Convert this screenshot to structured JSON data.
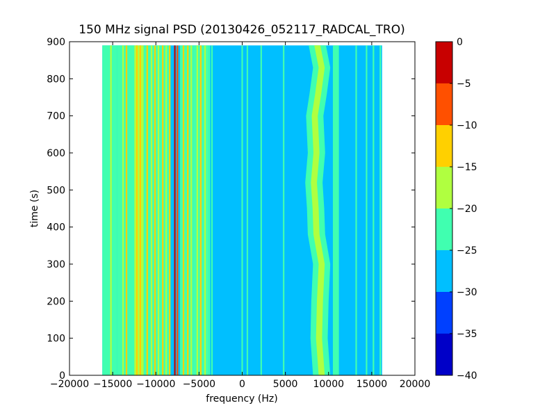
{
  "chart_data": {
    "type": "heatmap",
    "title": "150 MHz signal PSD (20130426_052117_RADCAL_TRO)",
    "xlabel": "frequency (Hz)",
    "ylabel": "time (s)",
    "xlim": [
      -20000,
      20000
    ],
    "ylim": [
      0,
      900
    ],
    "x_ticks": [
      -20000,
      -15000,
      -10000,
      -5000,
      0,
      5000,
      10000,
      15000,
      20000
    ],
    "x_tick_labels": [
      "−20000",
      "−15000",
      "−10000",
      "−5000",
      "0",
      "5000",
      "10000",
      "15000",
      "20000"
    ],
    "y_ticks": [
      0,
      100,
      200,
      300,
      400,
      500,
      600,
      700,
      800,
      900
    ],
    "y_tick_labels": [
      "0",
      "100",
      "200",
      "300",
      "400",
      "500",
      "600",
      "700",
      "800",
      "900"
    ],
    "data_extent": {
      "freq_min": -16200,
      "freq_max": 16200,
      "time_min": 0,
      "time_max": 890
    },
    "background_level": -27.5,
    "grid": false,
    "colorbar": {
      "levels": [
        -40,
        -35,
        -30,
        -25,
        -20,
        -15,
        -10,
        -5,
        0
      ],
      "tick_labels": [
        "−40",
        "−35",
        "−30",
        "−25",
        "−20",
        "−15",
        "−10",
        "−5",
        "0"
      ],
      "colors": [
        "#0000c8",
        "#0040ff",
        "#00bfff",
        "#40ffb0",
        "#b0ff40",
        "#ffd000",
        "#ff5000",
        "#c80000"
      ]
    },
    "features": [
      {
        "kind": "band",
        "x_from": -16200,
        "x_to": -14500,
        "level": -22.5
      },
      {
        "kind": "band",
        "x_from": -14500,
        "x_to": -12500,
        "level": -22.5
      },
      {
        "kind": "line",
        "x": -15200,
        "level": -17.5
      },
      {
        "kind": "line",
        "x": -13800,
        "level": -17.5
      },
      {
        "kind": "line",
        "x": -13400,
        "level": -12.5
      },
      {
        "kind": "band",
        "x_from": -12500,
        "x_to": -11400,
        "level": -17.5
      },
      {
        "kind": "line",
        "x": -12200,
        "level": -12.5
      },
      {
        "kind": "line",
        "x": -11800,
        "level": -12.5
      },
      {
        "kind": "band",
        "x_from": -11400,
        "x_to": -8300,
        "level": -22.5
      },
      {
        "kind": "line",
        "x": -11000,
        "level": -12.5
      },
      {
        "kind": "line",
        "x": -10500,
        "level": -17.5
      },
      {
        "kind": "line",
        "x": -10100,
        "level": -12.5
      },
      {
        "kind": "line",
        "x": -9700,
        "level": -17.5
      },
      {
        "kind": "line",
        "x": -9200,
        "level": -12.5
      },
      {
        "kind": "line",
        "x": -8800,
        "level": -17.5
      },
      {
        "kind": "line",
        "x": -8400,
        "level": -12.5
      },
      {
        "kind": "line",
        "x": -7800,
        "level": -2.5
      },
      {
        "kind": "line",
        "x": -7500,
        "level": -7.5
      },
      {
        "kind": "band",
        "x_from": -7200,
        "x_to": -5600,
        "level": -22.5
      },
      {
        "kind": "line",
        "x": -6800,
        "level": -12.5
      },
      {
        "kind": "line",
        "x": -6300,
        "level": -12.5
      },
      {
        "kind": "line",
        "x": -5900,
        "level": -17.5
      },
      {
        "kind": "band",
        "x_from": -5600,
        "x_to": -3900,
        "level": -22.5
      },
      {
        "kind": "line",
        "x": -5200,
        "level": -17.5
      },
      {
        "kind": "line",
        "x": -4800,
        "level": -12.5
      },
      {
        "kind": "line",
        "x": -4300,
        "level": -17.5
      },
      {
        "kind": "line",
        "x": -3800,
        "level": -22.5
      },
      {
        "kind": "line",
        "x": -3500,
        "level": -22.5
      },
      {
        "kind": "line",
        "x": 0,
        "level": -22.5
      },
      {
        "kind": "line",
        "x": 600,
        "level": -22.5
      },
      {
        "kind": "line",
        "x": 2200,
        "level": -22.5
      },
      {
        "kind": "line",
        "x": 4800,
        "level": -22.5
      },
      {
        "kind": "line",
        "x": 13200,
        "level": -22.5
      },
      {
        "kind": "line",
        "x": 14400,
        "level": -22.5
      },
      {
        "kind": "line",
        "x": 15200,
        "level": -22.5
      },
      {
        "kind": "line",
        "x": 16000,
        "level": -22.5
      }
    ],
    "drift_band": {
      "level": -22.5,
      "core_level": -17.5,
      "width_hz": 2000,
      "trace": [
        {
          "t": 0,
          "x": 9200
        },
        {
          "t": 100,
          "x": 8900
        },
        {
          "t": 200,
          "x": 9000
        },
        {
          "t": 300,
          "x": 9200
        },
        {
          "t": 380,
          "x": 8600
        },
        {
          "t": 450,
          "x": 8500
        },
        {
          "t": 520,
          "x": 8300
        },
        {
          "t": 600,
          "x": 8600
        },
        {
          "t": 700,
          "x": 8400
        },
        {
          "t": 760,
          "x": 8800
        },
        {
          "t": 830,
          "x": 9200
        },
        {
          "t": 890,
          "x": 8700
        }
      ]
    },
    "side_band": {
      "x_from": 10500,
      "x_to": 11200,
      "level": -22.5
    }
  }
}
